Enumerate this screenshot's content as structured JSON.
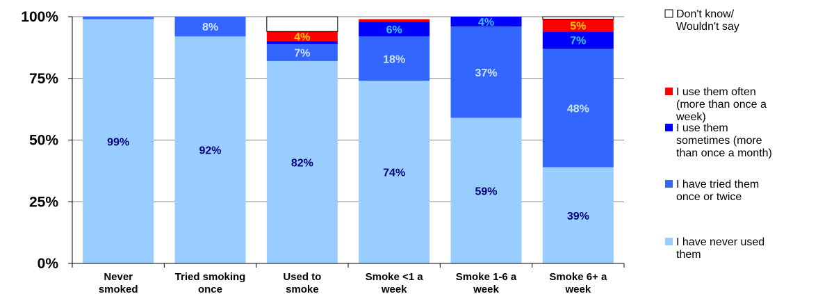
{
  "chart_data": {
    "type": "bar",
    "stacked": true,
    "percent": true,
    "categories": [
      [
        "Never",
        "smoked"
      ],
      [
        "Tried smoking",
        "once"
      ],
      [
        "Used to",
        "smoke"
      ],
      [
        "Smoke <1 a",
        "week"
      ],
      [
        "Smoke 1-6  a",
        "week"
      ],
      [
        "Smoke 6+  a",
        "week"
      ]
    ],
    "y_ticks": [
      "0%",
      "25%",
      "50%",
      "75%",
      "100%"
    ],
    "ylim": [
      0,
      100
    ],
    "grid": true,
    "legend_position": "right",
    "series": [
      {
        "name": "I have never used them",
        "legend_lines": [
          "I have never used",
          "them"
        ],
        "color": "#99ccff",
        "label_color": "#000080",
        "values": [
          99,
          92,
          82,
          74,
          59,
          39
        ],
        "labels": [
          "99%",
          "92%",
          "82%",
          "74%",
          "59%",
          "39%"
        ]
      },
      {
        "name": "I have tried them once or twice",
        "legend_lines": [
          "I have tried them",
          "once or twice"
        ],
        "color": "#3366ff",
        "label_color": "#cce6ff",
        "values": [
          1,
          8,
          7,
          18,
          37,
          48
        ],
        "labels": [
          "",
          "8%",
          "7%",
          "18%",
          "37%",
          "48%"
        ]
      },
      {
        "name": "I use them sometimes (more than once a month)",
        "legend_lines": [
          "I use them",
          "sometimes (more",
          "than once a month)"
        ],
        "color": "#0000ff",
        "label_color": "#33ccff",
        "values": [
          0,
          0,
          1,
          6,
          4,
          7
        ],
        "labels": [
          "",
          "",
          "",
          "6%",
          "4%",
          "7%"
        ]
      },
      {
        "name": "I use them often (more than once a week)",
        "legend_lines": [
          "I use them often",
          "(more than once a",
          "week)"
        ],
        "color": "#ff0000",
        "label_color": "#ffcc00",
        "values": [
          0,
          0,
          4,
          1,
          0,
          5
        ],
        "labels": [
          "",
          "",
          "4%",
          "",
          "",
          "5%"
        ]
      },
      {
        "name": "Don't know/ Wouldn't say",
        "legend_lines": [
          "Don't know/",
          "Wouldn't say"
        ],
        "color": "#ffffff",
        "label_color": "#000000",
        "values": [
          0,
          0,
          6,
          0,
          0,
          1
        ],
        "labels": [
          "",
          "",
          "",
          "",
          "",
          ""
        ]
      }
    ],
    "legend_order": [
      4,
      3,
      2,
      1,
      0
    ]
  }
}
